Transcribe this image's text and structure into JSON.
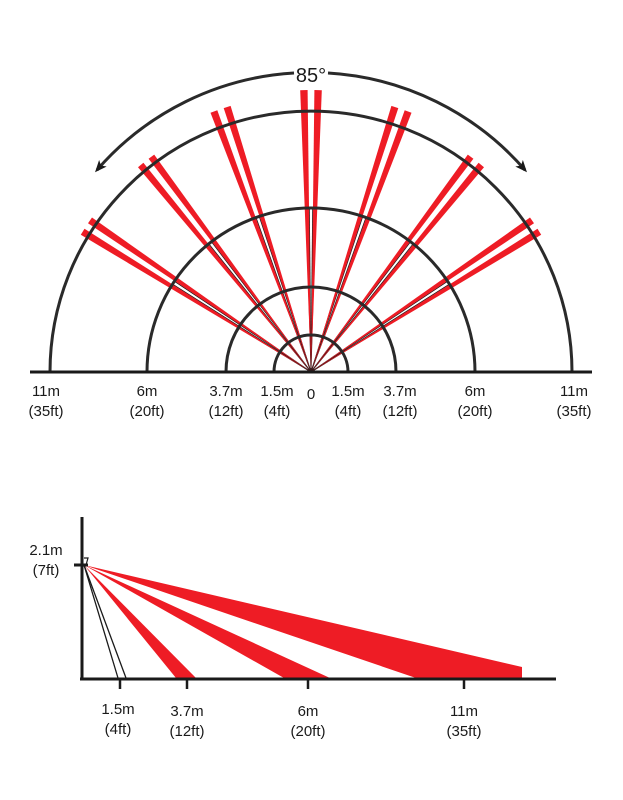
{
  "top_view": {
    "angle_label": "85°",
    "center_label": "0",
    "range_labels": [
      {
        "meters": "1.5m",
        "feet": "(4ft)"
      },
      {
        "meters": "3.7m",
        "feet": "(12ft)"
      },
      {
        "meters": "6m",
        "feet": "(20ft)"
      },
      {
        "meters": "11m",
        "feet": "(35ft)"
      }
    ]
  },
  "side_view": {
    "height_label": {
      "meters": "2.1m",
      "feet": "(7ft)"
    },
    "range_labels": [
      {
        "meters": "1.5m",
        "feet": "(4ft)"
      },
      {
        "meters": "3.7m",
        "feet": "(12ft)"
      },
      {
        "meters": "6m",
        "feet": "(20ft)"
      },
      {
        "meters": "11m",
        "feet": "(35ft)"
      }
    ]
  },
  "colors": {
    "beam": "#ee1c25",
    "line": "#1a1a1a",
    "arc": "#2a2a2a"
  }
}
